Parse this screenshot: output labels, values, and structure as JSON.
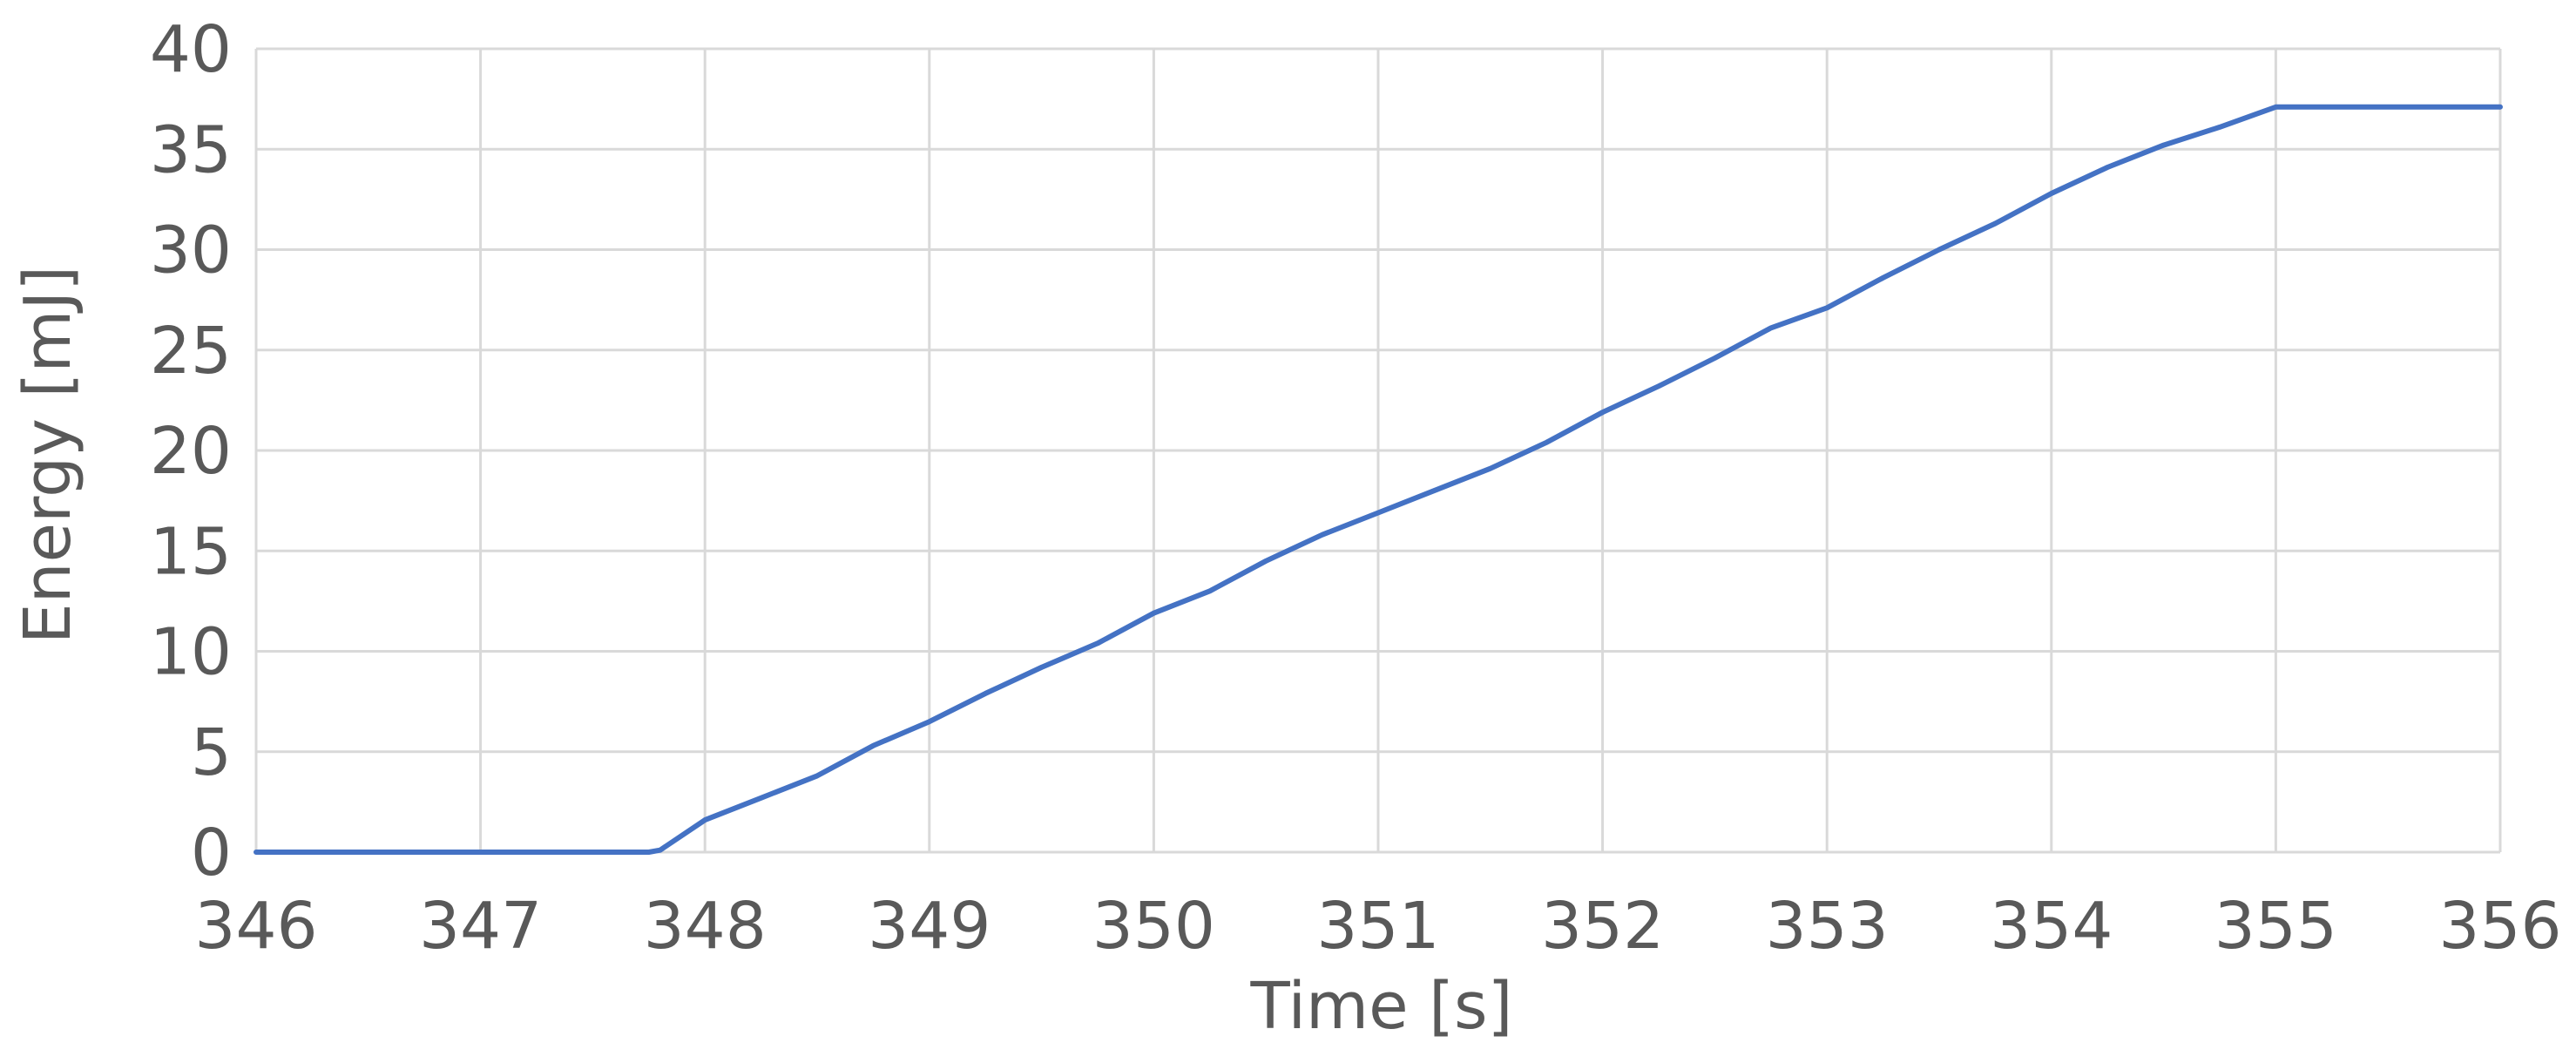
{
  "chart_data": {
    "type": "line",
    "title": "",
    "xlabel": "Time [s]",
    "ylabel": "Energy [mJ]",
    "xlim": [
      346,
      356
    ],
    "ylim": [
      0,
      40
    ],
    "x_ticks": [
      "346",
      "347",
      "348",
      "349",
      "350",
      "351",
      "352",
      "353",
      "354",
      "355",
      "356"
    ],
    "y_ticks": [
      "0",
      "5",
      "10",
      "15",
      "20",
      "25",
      "30",
      "35",
      "40"
    ],
    "grid": true,
    "legend": "none",
    "series": [
      {
        "color": "#4472c4",
        "x": [
          346.0,
          347.0,
          347.75,
          347.8,
          348.0,
          348.25,
          348.5,
          348.75,
          349.0,
          349.25,
          349.5,
          349.75,
          350.0,
          350.25,
          350.5,
          350.75,
          351.0,
          351.25,
          351.5,
          351.75,
          352.0,
          352.25,
          352.5,
          352.75,
          353.0,
          353.25,
          353.5,
          353.75,
          354.0,
          354.25,
          354.5,
          354.75,
          355.0,
          355.5,
          356.0
        ],
        "y": [
          0.0,
          0.0,
          0.0,
          0.1,
          1.6,
          2.7,
          3.8,
          5.3,
          6.5,
          7.9,
          9.2,
          10.4,
          11.9,
          13.0,
          14.5,
          15.8,
          16.9,
          18.0,
          19.1,
          20.4,
          21.9,
          23.2,
          24.6,
          26.1,
          27.1,
          28.6,
          30.0,
          31.3,
          32.8,
          34.1,
          35.2,
          36.1,
          37.1,
          37.1,
          37.1
        ]
      }
    ]
  }
}
